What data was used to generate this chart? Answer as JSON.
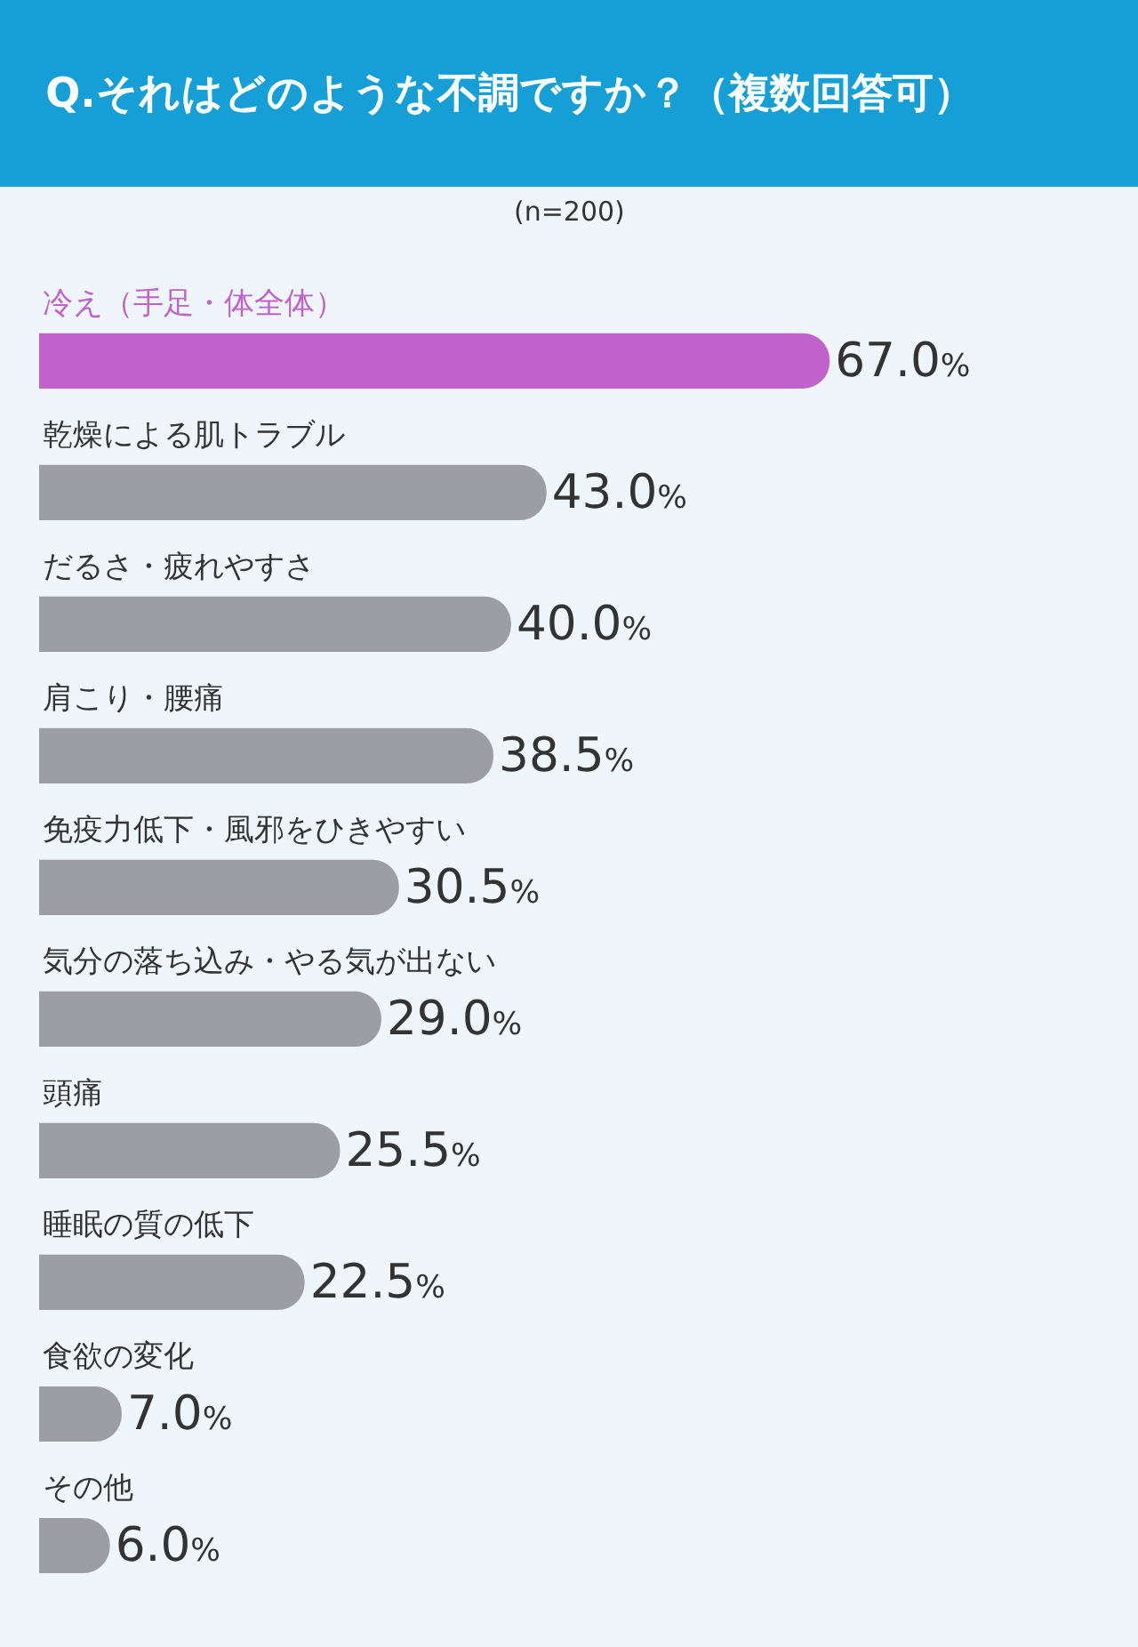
{
  "chart_data": {
    "type": "bar",
    "orientation": "horizontal",
    "title": "Q.それはどのような不調ですか？（複数回答可）",
    "subtitle": "(n=200)",
    "categories": [
      "冷え（手足・体全体）",
      "乾燥による肌トラブル",
      "だるさ・疲れやすさ",
      "肩こり・腰痛",
      "免疫力低下・風邪をひきやすい",
      "気分の落ち込み・やる気が出ない",
      "頭痛",
      "睡眠の質の低下",
      "食欲の変化",
      "その他"
    ],
    "values": [
      67.0,
      43.0,
      40.0,
      38.5,
      30.5,
      29.0,
      25.5,
      22.5,
      7.0,
      6.0
    ],
    "value_labels": [
      "67.0%",
      "43.0%",
      "40.0%",
      "38.5%",
      "30.5%",
      "29.0%",
      "25.5%",
      "22.5%",
      "7.0%",
      "6.0%"
    ],
    "colors": [
      "#c062cc",
      "#9d9ea3",
      "#9d9ea3",
      "#9d9ea3",
      "#9d9ea3",
      "#9d9ea3",
      "#9d9ea3",
      "#9d9ea3",
      "#9d9ea3",
      "#9d9ea3"
    ],
    "legend": false
  }
}
